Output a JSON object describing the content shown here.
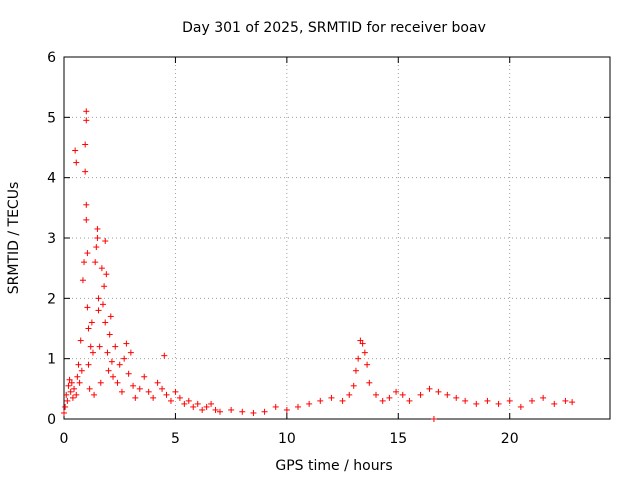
{
  "chart_data": {
    "type": "scatter",
    "title": "Day 301 of 2025, SRMTID for receiver boav",
    "xlabel": "GPS time / hours",
    "ylabel": "SRMTID / TECUs",
    "xlim": [
      0,
      24.5
    ],
    "ylim": [
      0,
      6
    ],
    "xticks": [
      0,
      5,
      10,
      15,
      20
    ],
    "yticks": [
      0,
      1,
      2,
      3,
      4,
      5,
      6
    ],
    "xtick_labels": [
      "0",
      "5",
      "10",
      "15",
      "20"
    ],
    "ytick_labels": [
      "0",
      "1",
      "2",
      "3",
      "4",
      "5",
      "6"
    ],
    "grid": true,
    "marker": "+",
    "color": "#ff0000",
    "series": [
      {
        "name": "SRMTID",
        "points": [
          [
            0.0,
            0.1
          ],
          [
            0.05,
            0.2
          ],
          [
            0.1,
            0.4
          ],
          [
            0.15,
            0.3
          ],
          [
            0.2,
            0.55
          ],
          [
            0.25,
            0.65
          ],
          [
            0.3,
            0.45
          ],
          [
            0.35,
            0.6
          ],
          [
            0.4,
            0.35
          ],
          [
            0.45,
            0.5
          ],
          [
            0.5,
            4.45
          ],
          [
            0.55,
            4.25
          ],
          [
            0.55,
            0.4
          ],
          [
            0.6,
            0.7
          ],
          [
            0.65,
            0.9
          ],
          [
            0.7,
            0.6
          ],
          [
            0.75,
            1.3
          ],
          [
            0.8,
            0.8
          ],
          [
            0.85,
            2.3
          ],
          [
            0.9,
            2.6
          ],
          [
            0.95,
            4.1
          ],
          [
            0.95,
            4.55
          ],
          [
            1.0,
            5.1
          ],
          [
            1.0,
            4.95
          ],
          [
            1.0,
            3.55
          ],
          [
            1.0,
            3.3
          ],
          [
            1.05,
            2.75
          ],
          [
            1.05,
            1.85
          ],
          [
            1.1,
            1.5
          ],
          [
            1.1,
            0.9
          ],
          [
            1.15,
            0.5
          ],
          [
            1.2,
            1.2
          ],
          [
            1.25,
            1.6
          ],
          [
            1.3,
            1.1
          ],
          [
            1.35,
            0.4
          ],
          [
            1.4,
            2.6
          ],
          [
            1.45,
            2.85
          ],
          [
            1.5,
            3.15
          ],
          [
            1.5,
            3.0
          ],
          [
            1.55,
            1.8
          ],
          [
            1.55,
            2.0
          ],
          [
            1.6,
            1.2
          ],
          [
            1.65,
            0.6
          ],
          [
            1.7,
            2.5
          ],
          [
            1.75,
            1.9
          ],
          [
            1.8,
            2.2
          ],
          [
            1.85,
            2.95
          ],
          [
            1.85,
            1.6
          ],
          [
            1.9,
            2.4
          ],
          [
            1.95,
            1.1
          ],
          [
            2.0,
            0.8
          ],
          [
            2.05,
            1.4
          ],
          [
            2.1,
            1.7
          ],
          [
            2.15,
            0.95
          ],
          [
            2.2,
            0.7
          ],
          [
            2.3,
            1.2
          ],
          [
            2.4,
            0.6
          ],
          [
            2.5,
            0.9
          ],
          [
            2.6,
            0.45
          ],
          [
            2.7,
            1.0
          ],
          [
            2.8,
            1.25
          ],
          [
            2.9,
            0.75
          ],
          [
            3.0,
            1.1
          ],
          [
            3.1,
            0.55
          ],
          [
            3.2,
            0.35
          ],
          [
            3.4,
            0.5
          ],
          [
            3.6,
            0.7
          ],
          [
            3.8,
            0.45
          ],
          [
            4.0,
            0.35
          ],
          [
            4.2,
            0.6
          ],
          [
            4.4,
            0.5
          ],
          [
            4.5,
            1.05
          ],
          [
            4.6,
            0.4
          ],
          [
            4.8,
            0.3
          ],
          [
            5.0,
            0.45
          ],
          [
            5.2,
            0.35
          ],
          [
            5.4,
            0.25
          ],
          [
            5.6,
            0.3
          ],
          [
            5.8,
            0.2
          ],
          [
            6.0,
            0.25
          ],
          [
            6.2,
            0.15
          ],
          [
            6.4,
            0.2
          ],
          [
            6.6,
            0.25
          ],
          [
            6.8,
            0.15
          ],
          [
            7.0,
            0.12
          ],
          [
            7.5,
            0.15
          ],
          [
            8.0,
            0.12
          ],
          [
            8.5,
            0.1
          ],
          [
            9.0,
            0.12
          ],
          [
            9.5,
            0.2
          ],
          [
            10.0,
            0.15
          ],
          [
            10.5,
            0.2
          ],
          [
            11.0,
            0.25
          ],
          [
            11.5,
            0.3
          ],
          [
            12.0,
            0.35
          ],
          [
            12.5,
            0.3
          ],
          [
            12.8,
            0.4
          ],
          [
            13.0,
            0.55
          ],
          [
            13.1,
            0.8
          ],
          [
            13.2,
            1.0
          ],
          [
            13.3,
            1.3
          ],
          [
            13.4,
            1.25
          ],
          [
            13.5,
            1.1
          ],
          [
            13.6,
            0.9
          ],
          [
            13.7,
            0.6
          ],
          [
            14.0,
            0.4
          ],
          [
            14.3,
            0.3
          ],
          [
            14.6,
            0.35
          ],
          [
            14.9,
            0.45
          ],
          [
            15.2,
            0.4
          ],
          [
            15.5,
            0.3
          ],
          [
            16.0,
            0.4
          ],
          [
            16.4,
            0.5
          ],
          [
            16.6,
            0.0
          ],
          [
            16.8,
            0.45
          ],
          [
            17.2,
            0.4
          ],
          [
            17.6,
            0.35
          ],
          [
            18.0,
            0.3
          ],
          [
            18.5,
            0.25
          ],
          [
            19.0,
            0.3
          ],
          [
            19.5,
            0.25
          ],
          [
            20.0,
            0.3
          ],
          [
            20.5,
            0.2
          ],
          [
            21.0,
            0.3
          ],
          [
            21.5,
            0.35
          ],
          [
            22.0,
            0.25
          ],
          [
            22.5,
            0.3
          ],
          [
            22.8,
            0.28
          ]
        ]
      }
    ]
  }
}
